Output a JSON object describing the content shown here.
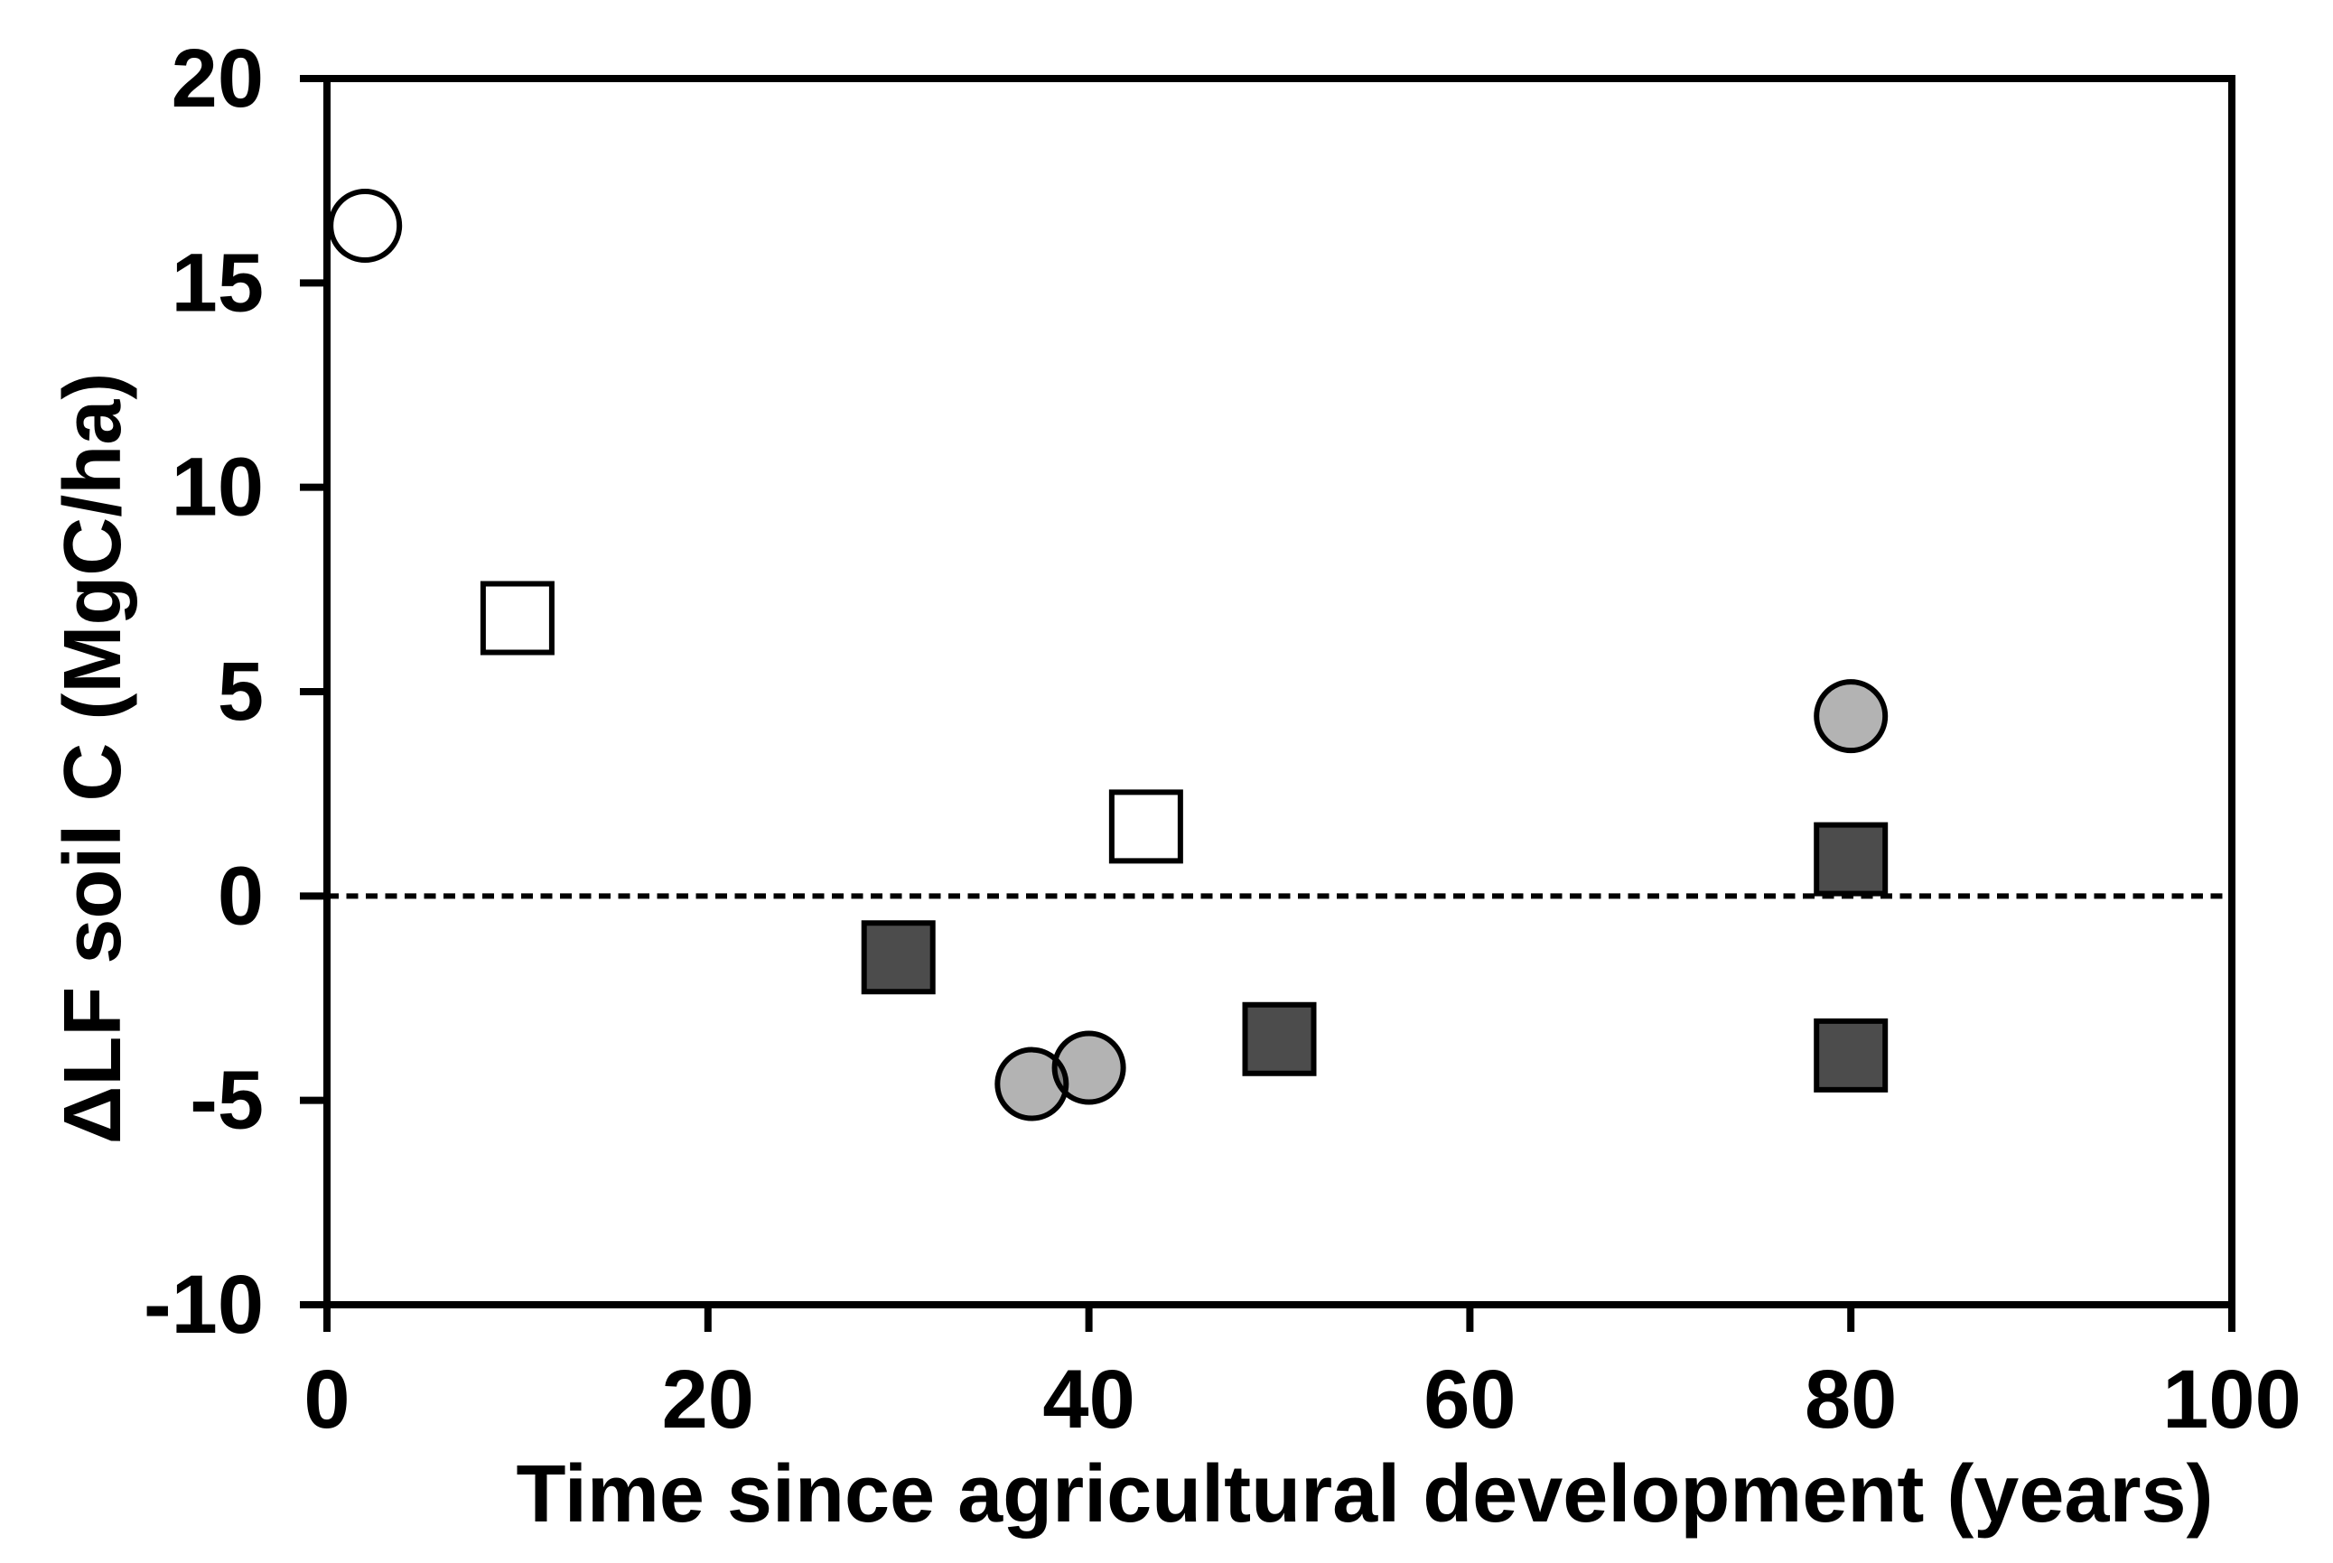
{
  "figure": {
    "background_color": "#ffffff",
    "frame_color": "#000000",
    "text_color": "#000000"
  },
  "chart_data": {
    "type": "scatter",
    "title": "",
    "xlabel": "Time since agricultural development (years)",
    "ylabel": "ΔLF soil C (MgC/ha)",
    "xlim": [
      0,
      100
    ],
    "ylim": [
      -10,
      20
    ],
    "x_ticks": [
      0,
      20,
      40,
      60,
      80,
      100
    ],
    "y_ticks": [
      -10,
      -5,
      0,
      5,
      10,
      15,
      20
    ],
    "grid": false,
    "legend": "none",
    "zero_line": {
      "y": 0,
      "style": "dashed",
      "color": "#000000"
    },
    "marker_outline_color": "#000000",
    "series": [
      {
        "name": "open-circles",
        "marker": "circle",
        "fill": "#ffffff",
        "points": [
          [
            2,
            16.4
          ]
        ]
      },
      {
        "name": "open-squares",
        "marker": "square",
        "fill": "#ffffff",
        "points": [
          [
            10,
            6.8
          ],
          [
            43,
            1.7
          ]
        ]
      },
      {
        "name": "dark-gray-squares",
        "marker": "square",
        "fill": "#4c4c4c",
        "points": [
          [
            30,
            -1.5
          ],
          [
            50,
            -3.5
          ],
          [
            80,
            0.9
          ],
          [
            80,
            -3.9
          ]
        ]
      },
      {
        "name": "light-gray-circles",
        "marker": "circle",
        "fill": "#b3b3b3",
        "points": [
          [
            37,
            -4.6
          ],
          [
            40,
            -4.2
          ],
          [
            80,
            4.4
          ]
        ]
      }
    ]
  }
}
